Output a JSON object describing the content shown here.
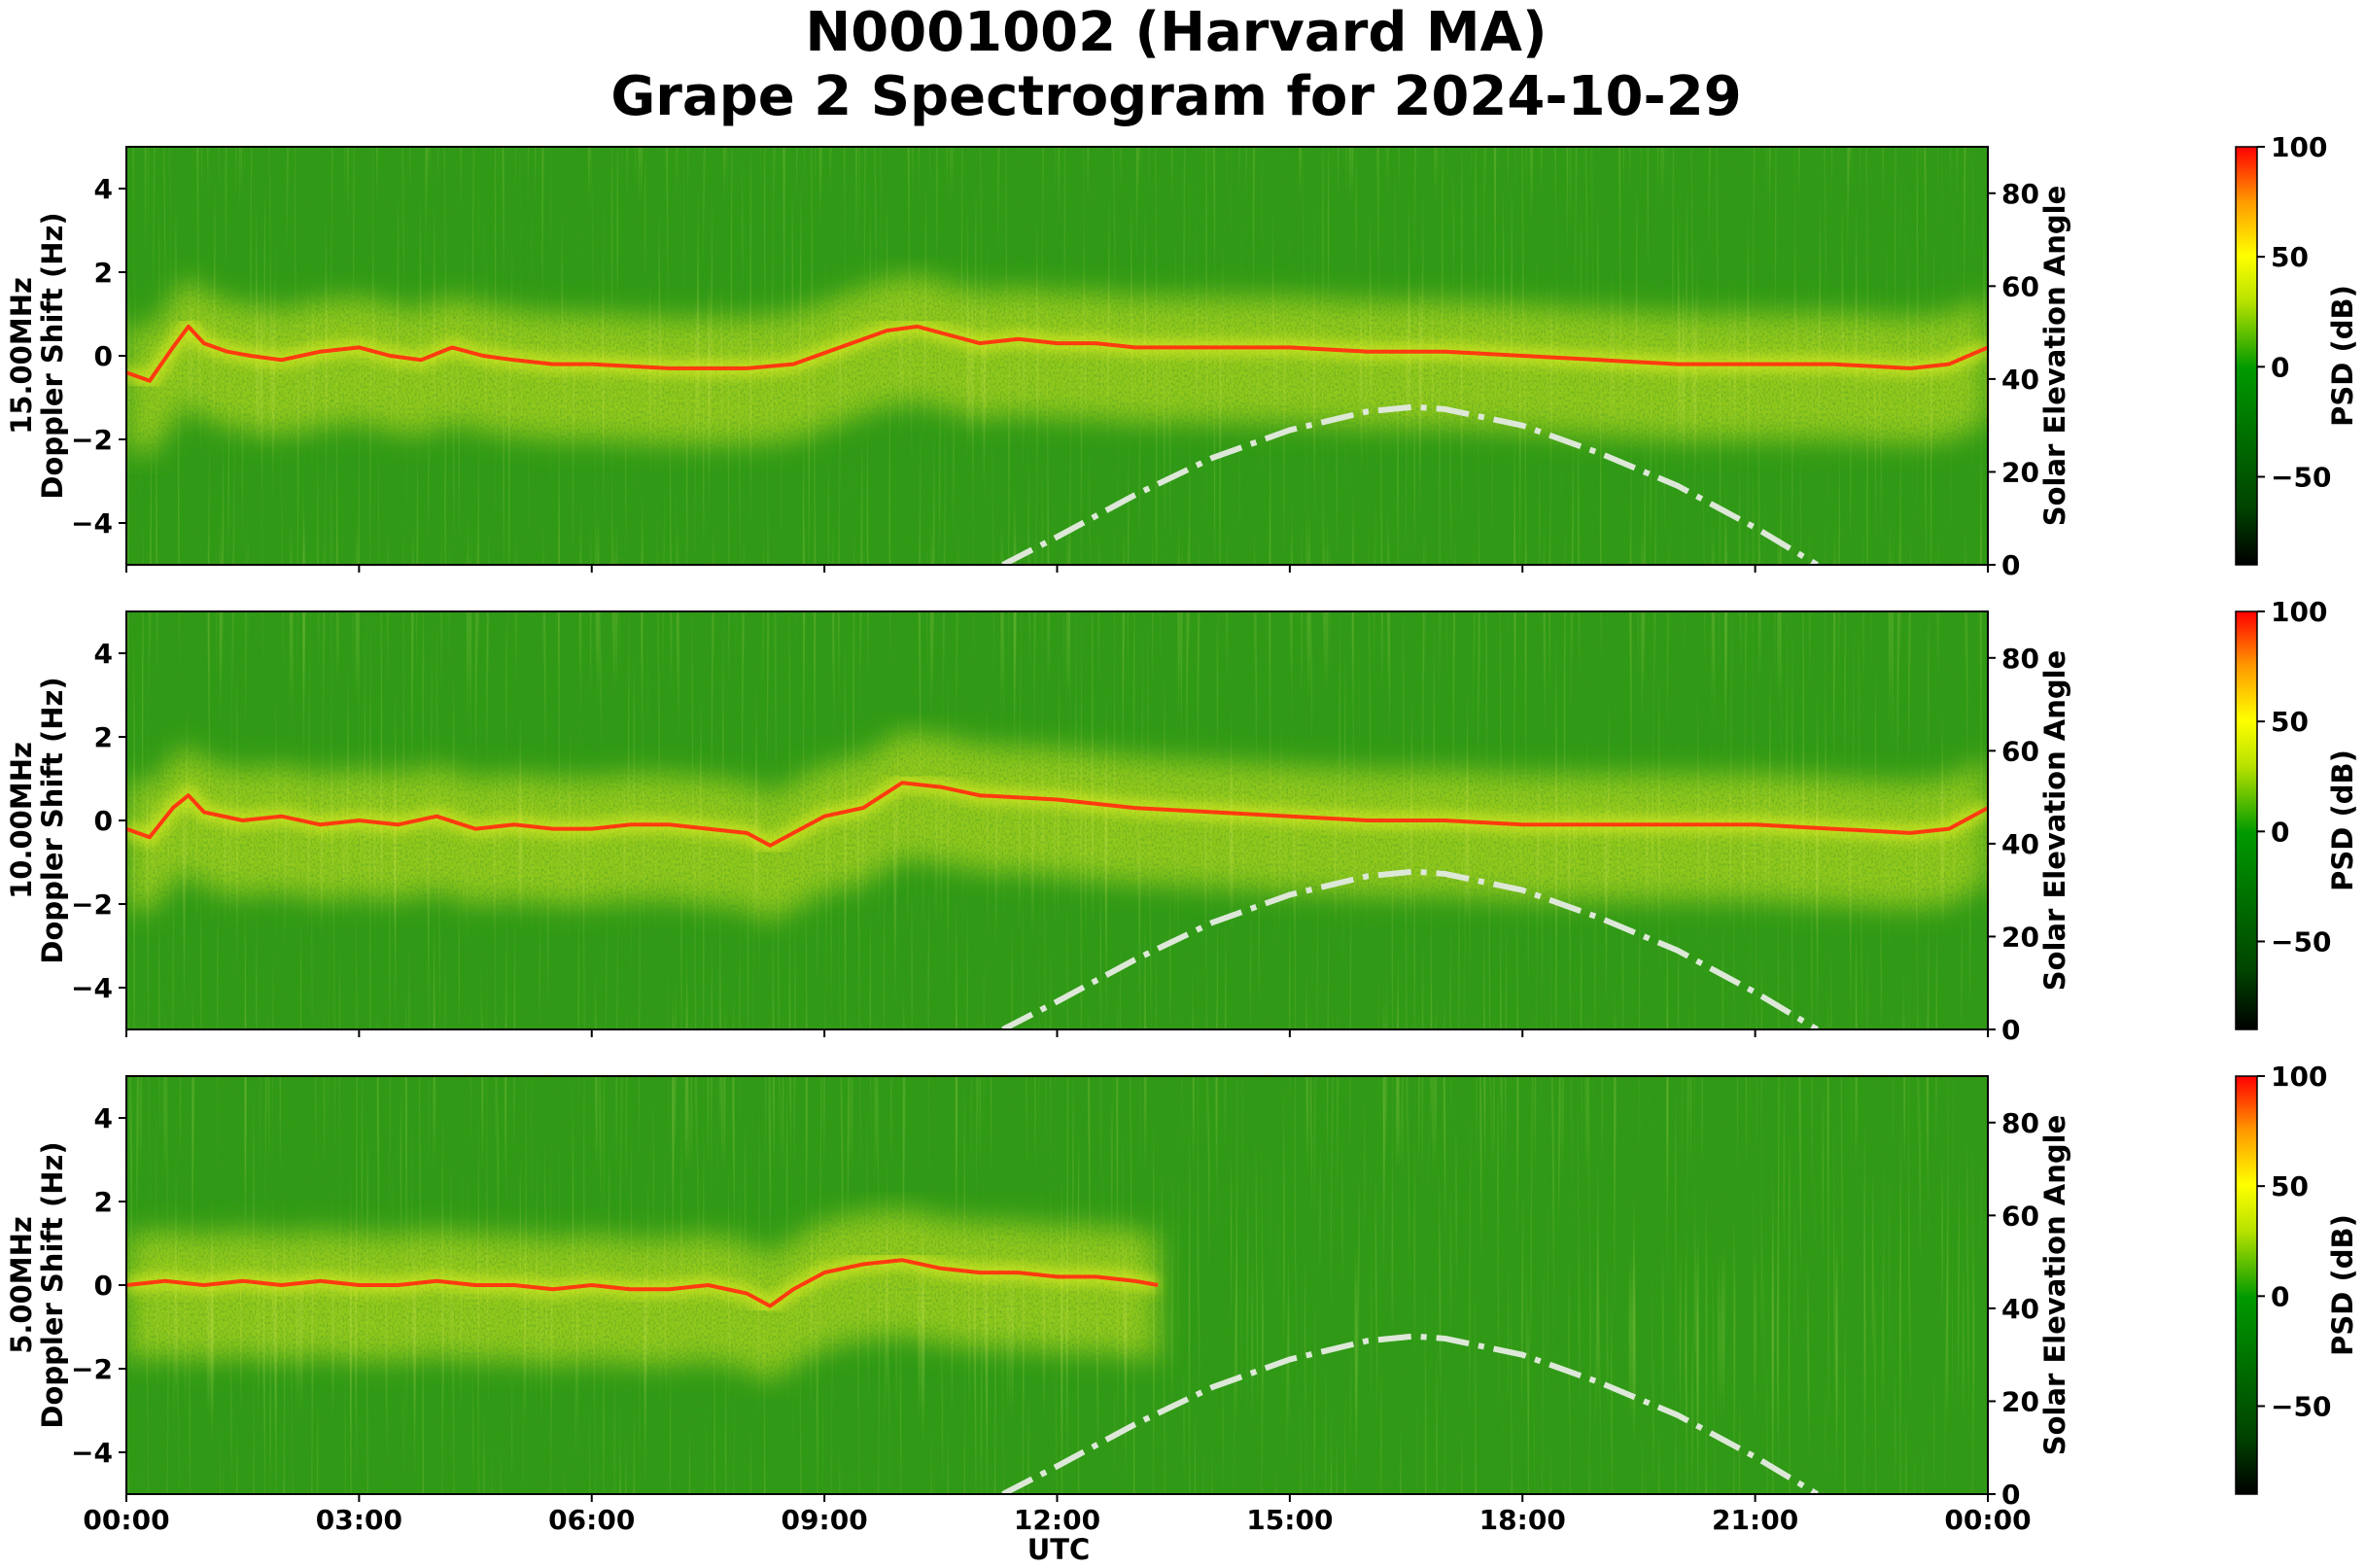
{
  "figure": {
    "title_line1": "N0001002 (Harvard MA)",
    "title_line2": "Grape 2 Spectrogram for 2024-10-29",
    "xlabel": "UTC",
    "x_tick_labels": [
      "00:00",
      "03:00",
      "06:00",
      "09:00",
      "12:00",
      "15:00",
      "18:00",
      "21:00",
      "00:00"
    ]
  },
  "colors": {
    "background_green": "#2e9a14",
    "carrier_red": "#ff3a10",
    "spread_yellow": "#e4f020",
    "solar_curve": "#dde8d8",
    "colormap_stops": [
      "#000000",
      "#004400",
      "#009900",
      "#b8e200",
      "#ffff00",
      "#ff9900",
      "#ff0000"
    ]
  },
  "chart_data": [
    {
      "type": "heatmap",
      "frequency_label": "15.00MHz",
      "ylabel": "Doppler Shift (Hz)",
      "y2label": "Solar Elevation Angle",
      "colorbar_label": "PSD (dB)",
      "x_range_hours": [
        0,
        24
      ],
      "ylim": [
        -5,
        5
      ],
      "y_ticks": [
        -4,
        -2,
        0,
        2,
        4
      ],
      "y_tick_labels": [
        "−4",
        "−2",
        "0",
        "2",
        "4"
      ],
      "y2lim": [
        0,
        90
      ],
      "y2_ticks": [
        0,
        20,
        40,
        60,
        80
      ],
      "colorbar_range": [
        -90,
        100
      ],
      "colorbar_ticks": [
        -50,
        0,
        50,
        100
      ],
      "colorbar_tick_labels": [
        "−50",
        "0",
        "50",
        "100"
      ],
      "doppler_trace": {
        "x_hours": [
          0,
          0.3,
          0.6,
          0.8,
          1.0,
          1.3,
          1.6,
          2.0,
          2.5,
          3.0,
          3.4,
          3.8,
          4.2,
          4.6,
          5.0,
          5.5,
          6.0,
          7.0,
          8.0,
          8.6,
          9.2,
          9.8,
          10.2,
          10.6,
          11.0,
          11.5,
          12.0,
          12.5,
          13.0,
          14.0,
          15.0,
          16.0,
          17.0,
          18.0,
          19.0,
          20.0,
          21.0,
          22.0,
          23.0,
          23.5,
          24.0
        ],
        "y_hz": [
          -0.4,
          -0.6,
          0.2,
          0.7,
          0.3,
          0.1,
          0.0,
          -0.1,
          0.1,
          0.2,
          0.0,
          -0.1,
          0.2,
          0.0,
          -0.1,
          -0.2,
          -0.2,
          -0.3,
          -0.3,
          -0.2,
          0.2,
          0.6,
          0.7,
          0.5,
          0.3,
          0.4,
          0.3,
          0.3,
          0.2,
          0.2,
          0.2,
          0.1,
          0.1,
          0.0,
          -0.1,
          -0.2,
          -0.2,
          -0.2,
          -0.3,
          -0.2,
          0.2
        ]
      },
      "solar_elevation": {
        "x_hours": [
          11.3,
          12.0,
          13.0,
          14.0,
          15.0,
          16.0,
          16.6,
          17.0,
          18.0,
          19.0,
          20.0,
          21.0,
          21.8
        ],
        "elevation_deg": [
          0,
          6,
          15,
          23,
          29,
          33,
          34,
          33.5,
          30,
          24,
          17,
          8,
          0
        ]
      }
    },
    {
      "type": "heatmap",
      "frequency_label": "10.00MHz",
      "ylabel": "Doppler Shift (Hz)",
      "y2label": "Solar Elevation Angle",
      "colorbar_label": "PSD (dB)",
      "x_range_hours": [
        0,
        24
      ],
      "ylim": [
        -5,
        5
      ],
      "y_ticks": [
        -4,
        -2,
        0,
        2,
        4
      ],
      "y_tick_labels": [
        "−4",
        "−2",
        "0",
        "2",
        "4"
      ],
      "y2lim": [
        0,
        90
      ],
      "y2_ticks": [
        0,
        20,
        40,
        60,
        80
      ],
      "colorbar_range": [
        -90,
        100
      ],
      "colorbar_ticks": [
        -50,
        0,
        50,
        100
      ],
      "colorbar_tick_labels": [
        "−50",
        "0",
        "50",
        "100"
      ],
      "doppler_trace": {
        "x_hours": [
          0,
          0.3,
          0.6,
          0.8,
          1.0,
          1.5,
          2.0,
          2.5,
          3.0,
          3.5,
          4.0,
          4.5,
          5.0,
          5.5,
          6.0,
          6.5,
          7.0,
          7.5,
          8.0,
          8.3,
          8.6,
          9.0,
          9.5,
          10.0,
          10.5,
          11.0,
          12.0,
          13.0,
          14.0,
          15.0,
          16.0,
          17.0,
          18.0,
          19.0,
          20.0,
          21.0,
          22.0,
          23.0,
          23.5,
          24.0
        ],
        "y_hz": [
          -0.2,
          -0.4,
          0.3,
          0.6,
          0.2,
          0.0,
          0.1,
          -0.1,
          0.0,
          -0.1,
          0.1,
          -0.2,
          -0.1,
          -0.2,
          -0.2,
          -0.1,
          -0.1,
          -0.2,
          -0.3,
          -0.6,
          -0.3,
          0.1,
          0.3,
          0.9,
          0.8,
          0.6,
          0.5,
          0.3,
          0.2,
          0.1,
          0.0,
          0.0,
          -0.1,
          -0.1,
          -0.1,
          -0.1,
          -0.2,
          -0.3,
          -0.2,
          0.3
        ]
      },
      "solar_elevation": {
        "x_hours": [
          11.3,
          12.0,
          13.0,
          14.0,
          15.0,
          16.0,
          16.6,
          17.0,
          18.0,
          19.0,
          20.0,
          21.0,
          21.8
        ],
        "elevation_deg": [
          0,
          6,
          15,
          23,
          29,
          33,
          34,
          33.5,
          30,
          24,
          17,
          8,
          0
        ]
      }
    },
    {
      "type": "heatmap",
      "frequency_label": "5.00MHz",
      "ylabel": "Doppler Shift (Hz)",
      "y2label": "Solar Elevation Angle",
      "colorbar_label": "PSD (dB)",
      "x_range_hours": [
        0,
        24
      ],
      "ylim": [
        -5,
        5
      ],
      "y_ticks": [
        -4,
        -2,
        0,
        2,
        4
      ],
      "y_tick_labels": [
        "−4",
        "−2",
        "0",
        "2",
        "4"
      ],
      "y2lim": [
        0,
        90
      ],
      "y2_ticks": [
        0,
        20,
        40,
        60,
        80
      ],
      "colorbar_range": [
        -90,
        100
      ],
      "colorbar_ticks": [
        -50,
        0,
        50,
        100
      ],
      "colorbar_tick_labels": [
        "−50",
        "0",
        "50",
        "100"
      ],
      "doppler_trace": {
        "x_hours": [
          0,
          0.5,
          1.0,
          1.5,
          2.0,
          2.5,
          3.0,
          3.5,
          4.0,
          4.5,
          5.0,
          5.5,
          6.0,
          6.5,
          7.0,
          7.5,
          8.0,
          8.3,
          8.6,
          9.0,
          9.5,
          10.0,
          10.5,
          11.0,
          11.5,
          12.0,
          12.5,
          13.0,
          13.3
        ],
        "y_hz": [
          0.0,
          0.1,
          0.0,
          0.1,
          0.0,
          0.1,
          0.0,
          0.0,
          0.1,
          0.0,
          0.0,
          -0.1,
          0.0,
          -0.1,
          -0.1,
          0.0,
          -0.2,
          -0.5,
          -0.1,
          0.3,
          0.5,
          0.6,
          0.4,
          0.3,
          0.3,
          0.2,
          0.2,
          0.1,
          0.0
        ]
      },
      "solar_elevation": {
        "x_hours": [
          11.3,
          12.0,
          13.0,
          14.0,
          15.0,
          16.0,
          16.6,
          17.0,
          18.0,
          19.0,
          20.0,
          21.0,
          21.8
        ],
        "elevation_deg": [
          0,
          6,
          15,
          23,
          29,
          33,
          34,
          33.5,
          30,
          24,
          17,
          8,
          0
        ]
      }
    }
  ]
}
